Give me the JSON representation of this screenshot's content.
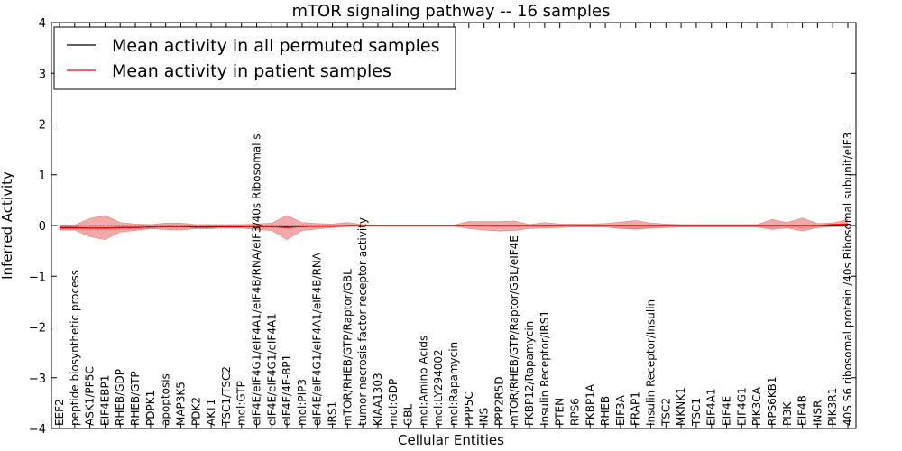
{
  "chart_data": {
    "type": "line",
    "title": "mTOR signaling pathway -- 16 samples",
    "xlabel": "Cellular Entities",
    "ylabel": "Inferred Activity",
    "ylim": [
      -4,
      4
    ],
    "yticks": [
      "4",
      "3",
      "2",
      "1",
      "0",
      "−1",
      "−2",
      "−3",
      "−4"
    ],
    "ytick_values": [
      4,
      3,
      2,
      1,
      0,
      -1,
      -2,
      -3,
      -4
    ],
    "grid": false,
    "legend": {
      "placement": "top-left",
      "entries": [
        {
          "label": "Mean activity in all permuted samples",
          "color": "#000000"
        },
        {
          "label": "Mean activity in patient samples",
          "color": "#ff0000"
        }
      ]
    },
    "categories": [
      "EEF2",
      "peptide biosynthetic process",
      "ASK1/PP5C",
      "EIF4EBP1",
      "RHEB/GDP",
      "RHEB/GTP",
      "PDPK1",
      "apoptosis",
      "MAP3K5",
      "PDK2",
      "AKT1",
      "TSC1/TSC2",
      "mol:GTP",
      "eIF4E/eIF4G1/eIF4A1/eIF4B/RNA/eIF3/40s Ribosomal s",
      "eIF4E/eIF4G1/eIF4A1",
      "eIF4E/4E-BP1",
      "mol:PIP3",
      "eIF4E/eIF4G1/eIF4A1/eIF4B/RNA",
      "IRS1",
      "mTOR/RHEB/GTP/Raptor/GBL",
      "tumor necrosis factor receptor activity",
      "KIAA1303",
      "mol:GDP",
      "GBL",
      "mol:Amino Acids",
      "mol:LY294002",
      "mol:Rapamycin",
      "PPP5C",
      "INS",
      "PPP2R5D",
      "mTOR/RHEB/GTP/Raptor/GBL/eIF4E",
      "FKBP12/Rapamycin",
      "Insulin Receptor/IRS1",
      "PTEN",
      "RPS6",
      "FKBP1A",
      "RHEB",
      "EIF3A",
      "FRAP1",
      "Insulin Receptor/Insulin",
      "TSC2",
      "MKNK1",
      "TSC1",
      "EIF4A1",
      "EIF4E",
      "EIF4G1",
      "PIK3CA",
      "RPS6KB1",
      "PI3K",
      "EIF4B",
      "INSR",
      "PIK3R1",
      "40S S6 ribosomal protein /40s Ribosomal subunit/eIF3"
    ],
    "series": [
      {
        "name": "Mean activity in all permuted samples",
        "color": "#000000",
        "values": [
          -0.04,
          -0.04,
          -0.05,
          -0.05,
          -0.04,
          -0.04,
          -0.03,
          -0.02,
          -0.02,
          -0.03,
          -0.03,
          -0.02,
          -0.02,
          -0.02,
          -0.02,
          -0.02,
          -0.02,
          -0.01,
          -0.01,
          0,
          0,
          0,
          0,
          0,
          0,
          0,
          0,
          0,
          0,
          0,
          0,
          0,
          0,
          0,
          0,
          0,
          0,
          0,
          0,
          0,
          0,
          0,
          0,
          0,
          0,
          0,
          0,
          0,
          0,
          0,
          0,
          0,
          0
        ],
        "band_low": [
          -0.09,
          -0.09,
          -0.1,
          -0.1,
          -0.09,
          -0.08,
          -0.07,
          -0.06,
          -0.06,
          -0.07,
          -0.07,
          -0.06,
          -0.06,
          -0.06,
          -0.06,
          -0.05,
          -0.05,
          -0.04,
          -0.03,
          -0.02,
          -0.01,
          -0.01,
          -0.01,
          -0.01,
          -0.01,
          -0.01,
          -0.01,
          -0.02,
          -0.03,
          -0.04,
          -0.03,
          -0.03,
          -0.03,
          -0.02,
          -0.02,
          -0.02,
          -0.03,
          -0.05,
          -0.1,
          -0.06,
          -0.04,
          -0.03,
          -0.03,
          -0.03,
          -0.03,
          -0.03,
          -0.03,
          -0.06,
          -0.04,
          -0.07,
          -0.05,
          -0.04,
          -0.03
        ],
        "band_high": [
          0.01,
          0.01,
          0.01,
          0.01,
          0.01,
          0.01,
          0.01,
          0.02,
          0.02,
          0.01,
          0.01,
          0.01,
          0.01,
          0.01,
          0.01,
          0.01,
          0.01,
          0.01,
          0.01,
          0.01,
          0.01,
          0.01,
          0.01,
          0.01,
          0.01,
          0.01,
          0.01,
          0.01,
          0.01,
          0.01,
          0.01,
          0.01,
          0.01,
          0.01,
          0.01,
          0.01,
          0.01,
          0.01,
          0.01,
          0.01,
          0.01,
          0.01,
          0.01,
          0.01,
          0.01,
          0.01,
          0.01,
          0.01,
          0.01,
          0.01,
          0.01,
          0.01,
          0.01
        ]
      },
      {
        "name": "Mean activity in patient samples",
        "color": "#ff0000",
        "values": [
          -0.05,
          -0.05,
          -0.05,
          -0.05,
          -0.04,
          -0.04,
          -0.03,
          -0.02,
          -0.02,
          -0.02,
          -0.02,
          -0.01,
          -0.01,
          -0.02,
          -0.02,
          -0.04,
          -0.02,
          -0.01,
          -0.01,
          0,
          0,
          0,
          0,
          0,
          0,
          0,
          0,
          0,
          0,
          0,
          0,
          0,
          0,
          0,
          0,
          0,
          0,
          0,
          0,
          0,
          0,
          0,
          0,
          0,
          0,
          0,
          0,
          0,
          0,
          0,
          0,
          0.02,
          0.03
        ],
        "band_low": [
          -0.09,
          -0.09,
          -0.22,
          -0.28,
          -0.13,
          -0.1,
          -0.06,
          -0.08,
          -0.09,
          -0.06,
          -0.06,
          -0.05,
          -0.05,
          -0.08,
          -0.1,
          -0.28,
          -0.1,
          -0.07,
          -0.04,
          -0.02,
          -0.01,
          -0.01,
          -0.01,
          -0.01,
          -0.01,
          -0.01,
          -0.01,
          -0.06,
          -0.09,
          -0.11,
          -0.1,
          -0.06,
          -0.05,
          -0.04,
          -0.03,
          -0.03,
          -0.03,
          -0.06,
          -0.07,
          -0.05,
          -0.04,
          -0.03,
          -0.03,
          -0.03,
          -0.03,
          -0.03,
          -0.03,
          -0.08,
          -0.05,
          -0.11,
          -0.04,
          -0.02,
          -0.02
        ],
        "band_high": [
          0.01,
          0.01,
          0.14,
          0.2,
          0.06,
          0.03,
          0.02,
          0.05,
          0.05,
          0.02,
          0.02,
          0.02,
          0.02,
          0.03,
          0.05,
          0.2,
          0.06,
          0.04,
          0.03,
          0.06,
          0.02,
          0.01,
          0.01,
          0.01,
          0.01,
          0.01,
          0.01,
          0.08,
          0.08,
          0.08,
          0.09,
          0.02,
          0.06,
          0.03,
          0.03,
          0.03,
          0.04,
          0.07,
          0.1,
          0.05,
          0.03,
          0.02,
          0.02,
          0.02,
          0.02,
          0.02,
          0.02,
          0.12,
          0.06,
          0.15,
          0.04,
          0.05,
          0.12
        ]
      }
    ]
  }
}
